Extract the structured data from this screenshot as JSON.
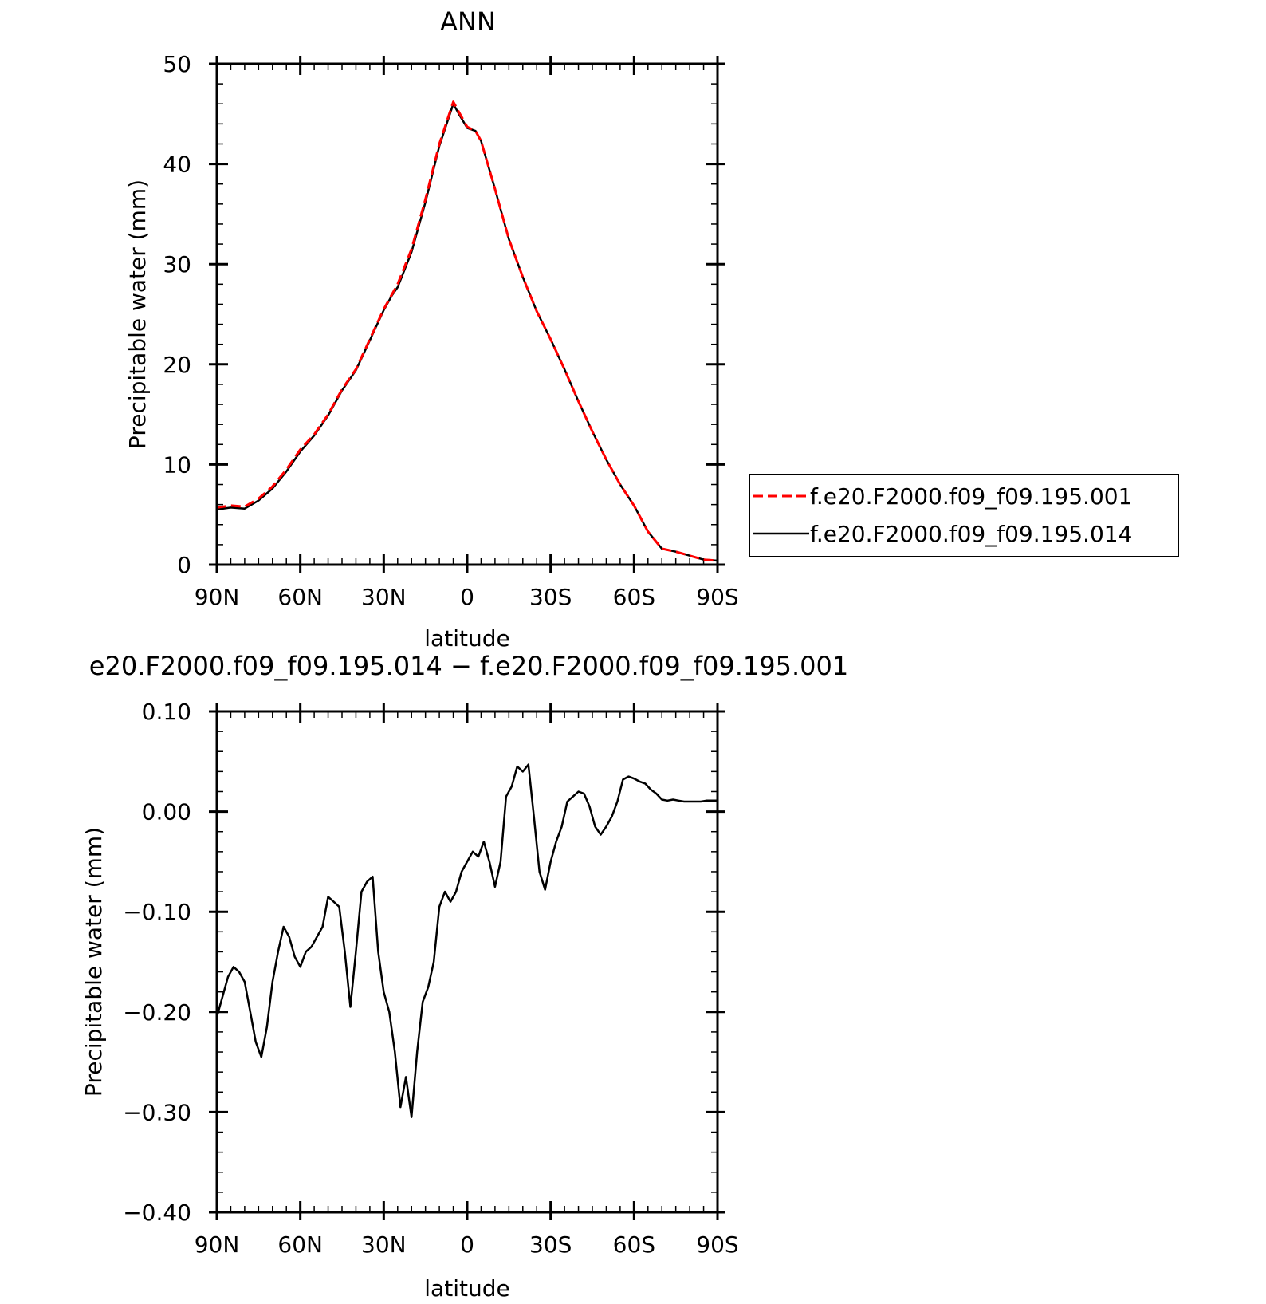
{
  "chart_data": [
    {
      "type": "line",
      "title": "ANN",
      "xlabel": "latitude",
      "ylabel": "Precipitable water (mm)",
      "xlim": [
        90,
        -90
      ],
      "ylim": [
        0,
        50
      ],
      "x_ticks": [
        {
          "value": 90,
          "label": "90N"
        },
        {
          "value": 60,
          "label": "60N"
        },
        {
          "value": 30,
          "label": "30N"
        },
        {
          "value": 0,
          "label": "0"
        },
        {
          "value": -30,
          "label": "30S"
        },
        {
          "value": -60,
          "label": "60S"
        },
        {
          "value": -90,
          "label": "90S"
        }
      ],
      "y_ticks": [
        {
          "value": 0,
          "label": "0"
        },
        {
          "value": 10,
          "label": "10"
        },
        {
          "value": 20,
          "label": "20"
        },
        {
          "value": 30,
          "label": "30"
        },
        {
          "value": 40,
          "label": "40"
        },
        {
          "value": 50,
          "label": "50"
        }
      ],
      "x": [
        90,
        85,
        80,
        75,
        70,
        65,
        60,
        55,
        50,
        45,
        40,
        35,
        30,
        27,
        25,
        20,
        15,
        10,
        5,
        3,
        0,
        -3,
        -5,
        -10,
        -15,
        -20,
        -25,
        -30,
        -35,
        -40,
        -45,
        -50,
        -55,
        -60,
        -65,
        -70,
        -75,
        -80,
        -85,
        -90
      ],
      "legend_position": "right",
      "series": [
        {
          "name": "f.e20.F2000.f09_f09.195.001",
          "color": "#ff0000",
          "dash": "dashed",
          "values": [
            5.7,
            5.9,
            5.8,
            6.6,
            7.8,
            9.5,
            11.5,
            13.0,
            15.0,
            17.5,
            19.5,
            22.5,
            25.5,
            27.0,
            28.0,
            31.5,
            36.5,
            42.0,
            46.2,
            45.2,
            43.7,
            43.3,
            42.3,
            37.5,
            32.5,
            28.7,
            25.3,
            22.5,
            19.5,
            16.3,
            13.3,
            10.5,
            8.0,
            5.9,
            3.3,
            1.6,
            1.3,
            0.9,
            0.5,
            0.4
          ]
        },
        {
          "name": "f.e20.F2000.f09_f09.195.014",
          "color": "#000000",
          "dash": "solid",
          "values": [
            5.5,
            5.7,
            5.6,
            6.4,
            7.6,
            9.3,
            11.3,
            12.9,
            14.9,
            17.4,
            19.4,
            22.4,
            25.4,
            26.9,
            27.7,
            31.2,
            36.2,
            41.8,
            46.0,
            45.0,
            43.6,
            43.3,
            42.3,
            37.5,
            32.5,
            28.7,
            25.3,
            22.5,
            19.5,
            16.3,
            13.3,
            10.5,
            8.0,
            5.9,
            3.3,
            1.6,
            1.3,
            0.9,
            0.5,
            0.4
          ]
        }
      ]
    },
    {
      "type": "line",
      "title": "e20.F2000.f09_f09.195.014 − f.e20.F2000.f09_f09.195.001",
      "xlabel": "latitude",
      "ylabel": "Precipitable water (mm)",
      "xlim": [
        90,
        -90
      ],
      "ylim": [
        -0.4,
        0.1
      ],
      "x_ticks": [
        {
          "value": 90,
          "label": "90N"
        },
        {
          "value": 60,
          "label": "60N"
        },
        {
          "value": 30,
          "label": "30N"
        },
        {
          "value": 0,
          "label": "0"
        },
        {
          "value": -30,
          "label": "30S"
        },
        {
          "value": -60,
          "label": "60S"
        },
        {
          "value": -90,
          "label": "90S"
        }
      ],
      "y_ticks": [
        {
          "value": -0.4,
          "label": "−0.40"
        },
        {
          "value": -0.3,
          "label": "−0.30"
        },
        {
          "value": -0.2,
          "label": "−0.20"
        },
        {
          "value": -0.1,
          "label": "−0.10"
        },
        {
          "value": 0.0,
          "label": "0.00"
        },
        {
          "value": 0.1,
          "label": "0.10"
        }
      ],
      "x": [
        90,
        88,
        86,
        84,
        82,
        80,
        78,
        76,
        74,
        72,
        70,
        68,
        66,
        64,
        62,
        60,
        58,
        56,
        54,
        52,
        50,
        48,
        46,
        44,
        42,
        40,
        38,
        36,
        34,
        32,
        30,
        28,
        26,
        24,
        22,
        20,
        18,
        16,
        14,
        12,
        10,
        8,
        6,
        4,
        2,
        0,
        -2,
        -4,
        -6,
        -8,
        -10,
        -12,
        -14,
        -16,
        -18,
        -20,
        -22,
        -24,
        -26,
        -28,
        -30,
        -32,
        -34,
        -36,
        -38,
        -40,
        -42,
        -44,
        -46,
        -48,
        -50,
        -52,
        -54,
        -56,
        -58,
        -60,
        -62,
        -64,
        -66,
        -68,
        -70,
        -72,
        -74,
        -76,
        -78,
        -80,
        -82,
        -84,
        -86,
        -88,
        -90
      ],
      "series": [
        {
          "color": "#000000",
          "dash": "solid",
          "values": [
            -0.205,
            -0.185,
            -0.165,
            -0.155,
            -0.16,
            -0.17,
            -0.2,
            -0.23,
            -0.245,
            -0.215,
            -0.17,
            -0.14,
            -0.115,
            -0.125,
            -0.145,
            -0.155,
            -0.14,
            -0.135,
            -0.125,
            -0.115,
            -0.085,
            -0.09,
            -0.095,
            -0.14,
            -0.195,
            -0.14,
            -0.08,
            -0.07,
            -0.065,
            -0.14,
            -0.18,
            -0.2,
            -0.24,
            -0.295,
            -0.265,
            -0.305,
            -0.24,
            -0.19,
            -0.175,
            -0.15,
            -0.095,
            -0.08,
            -0.09,
            -0.08,
            -0.06,
            -0.05,
            -0.04,
            -0.045,
            -0.03,
            -0.05,
            -0.075,
            -0.05,
            0.015,
            0.025,
            0.045,
            0.04,
            0.047,
            -0.005,
            -0.06,
            -0.078,
            -0.05,
            -0.03,
            -0.015,
            0.01,
            0.015,
            0.02,
            0.018,
            0.005,
            -0.015,
            -0.023,
            -0.015,
            -0.005,
            0.01,
            0.032,
            0.035,
            0.033,
            0.03,
            0.028,
            0.022,
            0.018,
            0.012,
            0.011,
            0.012,
            0.011,
            0.01,
            0.01,
            0.01,
            0.01,
            0.011,
            0.011,
            0.011
          ]
        }
      ]
    }
  ]
}
